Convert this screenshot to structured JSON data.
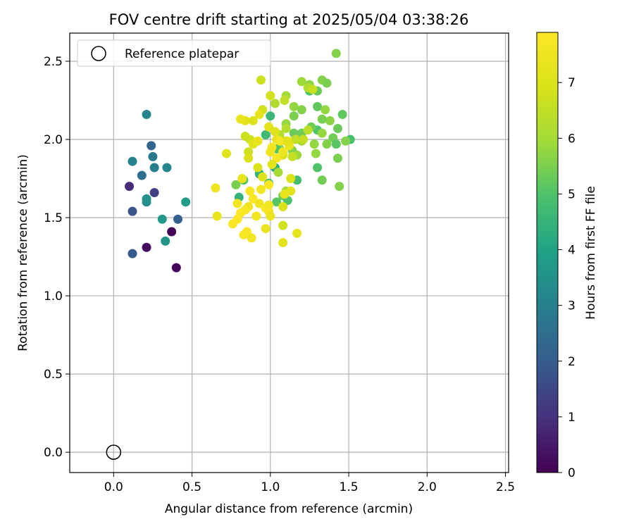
{
  "chart_data": {
    "type": "scatter",
    "title": "FOV centre drift starting at 2025/05/04 03:38:26",
    "xlabel": "Angular distance from reference (arcmin)",
    "ylabel": "Rotation from reference (arcmin)",
    "xlim": [
      -0.28,
      2.52
    ],
    "ylim": [
      -0.13,
      2.68
    ],
    "x_ticks": [
      0.0,
      0.5,
      1.0,
      1.5,
      2.0,
      2.5
    ],
    "x_tick_labels": [
      "0.0",
      "0.5",
      "1.0",
      "1.5",
      "2.0",
      "2.5"
    ],
    "y_ticks": [
      0.0,
      0.5,
      1.0,
      1.5,
      2.0,
      2.5
    ],
    "y_tick_labels": [
      "0.0",
      "0.5",
      "1.0",
      "1.5",
      "2.0",
      "2.5"
    ],
    "grid": true,
    "legend": {
      "placement": "top-left",
      "entries": [
        {
          "label": "Reference platepar",
          "marker": "hollow-circle"
        }
      ]
    },
    "reference_point": {
      "x": 0.0,
      "y": 0.0
    },
    "colorbar": {
      "label": "Hours from first FF file",
      "colormap": "viridis",
      "range": [
        0,
        7.9
      ],
      "ticks": [
        0,
        1,
        2,
        3,
        4,
        5,
        6,
        7
      ],
      "tick_labels": [
        "0",
        "1",
        "2",
        "3",
        "4",
        "5",
        "6",
        "7"
      ]
    },
    "series": [
      {
        "points": [
          [
            0.37,
            1.41,
            0.05
          ],
          [
            0.4,
            1.18,
            0.1
          ],
          [
            0.21,
            1.31,
            0.2
          ],
          [
            0.1,
            1.7,
            0.9
          ],
          [
            0.26,
            1.66,
            1.3
          ],
          [
            0.12,
            1.54,
            1.8
          ],
          [
            0.12,
            1.27,
            1.9
          ],
          [
            0.41,
            1.49,
            2.1
          ],
          [
            0.24,
            1.96,
            2.2
          ],
          [
            0.18,
            1.77,
            2.5
          ],
          [
            0.25,
            1.89,
            2.8
          ],
          [
            0.26,
            1.82,
            2.9
          ],
          [
            0.12,
            1.86,
            3.0
          ],
          [
            0.21,
            2.16,
            3.1
          ],
          [
            0.34,
            1.82,
            3.2
          ],
          [
            0.21,
            1.6,
            3.4
          ],
          [
            0.21,
            1.62,
            3.5
          ],
          [
            0.33,
            1.35,
            3.6
          ],
          [
            0.31,
            1.49,
            3.7
          ],
          [
            0.46,
            1.6,
            3.8
          ],
          [
            1.42,
            2.55,
            5.6
          ],
          [
            1.46,
            2.16,
            5.2
          ],
          [
            1.33,
            2.38,
            5.6
          ],
          [
            1.36,
            2.36,
            5.5
          ],
          [
            1.2,
            2.37,
            5.9
          ],
          [
            1.25,
            2.31,
            5.0
          ],
          [
            1.3,
            2.31,
            5.3
          ],
          [
            1.3,
            2.21,
            5.2
          ],
          [
            1.25,
            2.35,
            5.7
          ],
          [
            1.15,
            2.21,
            5.8
          ],
          [
            1.2,
            2.19,
            5.6
          ],
          [
            1.35,
            2.19,
            5.8
          ],
          [
            1.38,
            2.12,
            5.7
          ],
          [
            1.43,
            2.07,
            5.3
          ],
          [
            1.33,
            2.13,
            5.5
          ],
          [
            1.3,
            2.06,
            5.0
          ],
          [
            1.26,
            2.08,
            5.4
          ],
          [
            1.4,
            2.01,
            5.4
          ],
          [
            1.51,
            2.0,
            4.9
          ],
          [
            1.48,
            1.99,
            5.6
          ],
          [
            1.42,
            1.97,
            5.1
          ],
          [
            1.36,
            1.97,
            5.6
          ],
          [
            1.33,
            2.04,
            5.8
          ],
          [
            1.28,
            1.97,
            5.8
          ],
          [
            1.2,
            2.04,
            5.4
          ],
          [
            1.15,
            2.04,
            5.3
          ],
          [
            1.2,
            1.99,
            5.9
          ],
          [
            1.29,
            1.91,
            5.8
          ],
          [
            1.14,
            1.93,
            5.6
          ],
          [
            1.06,
            1.94,
            5.7
          ],
          [
            1.04,
            1.94,
            5.0
          ],
          [
            1.0,
            2.15,
            4.6
          ],
          [
            0.97,
            2.03,
            4.7
          ],
          [
            1.1,
            2.1,
            5.8
          ],
          [
            1.15,
            2.15,
            5.5
          ],
          [
            1.17,
            1.9,
            5.9
          ],
          [
            1.43,
            1.88,
            5.5
          ],
          [
            1.3,
            1.82,
            5.0
          ],
          [
            1.33,
            1.74,
            5.4
          ],
          [
            1.44,
            1.7,
            5.6
          ],
          [
            1.03,
            1.82,
            4.2
          ],
          [
            0.93,
            1.78,
            4.4
          ],
          [
            0.99,
            1.72,
            4.9
          ],
          [
            1.08,
            1.64,
            5.3
          ],
          [
            1.11,
            1.61,
            5.0
          ],
          [
            0.83,
            1.74,
            5.1
          ],
          [
            0.8,
            1.63,
            4.5
          ],
          [
            0.78,
            1.71,
            5.5
          ],
          [
            1.17,
            1.74,
            4.8
          ],
          [
            1.04,
            1.6,
            5.1
          ],
          [
            1.1,
            1.67,
            6.0
          ],
          [
            1.05,
            1.79,
            6.0
          ],
          [
            1.24,
            2.33,
            6.2
          ],
          [
            1.1,
            2.28,
            6.0
          ],
          [
            1.03,
            2.23,
            6.2
          ],
          [
            1.09,
            2.25,
            6.5
          ],
          [
            1.0,
            2.28,
            6.8
          ],
          [
            0.94,
            2.38,
            6.7
          ],
          [
            1.27,
            2.32,
            6.6
          ],
          [
            1.24,
            2.06,
            6.4
          ],
          [
            1.21,
            2.0,
            6.6
          ],
          [
            1.16,
            2.0,
            6.5
          ],
          [
            1.1,
            2.07,
            6.3
          ],
          [
            1.06,
            2.03,
            6.3
          ],
          [
            1.1,
            1.99,
            6.7
          ],
          [
            1.08,
            1.9,
            6.9
          ],
          [
            1.14,
            1.89,
            6.6
          ],
          [
            0.95,
            2.19,
            6.8
          ],
          [
            0.93,
            2.16,
            7.3
          ],
          [
            0.89,
            2.12,
            7.0
          ],
          [
            0.84,
            2.12,
            7.2
          ],
          [
            0.81,
            2.13,
            7.4
          ],
          [
            0.87,
            2.0,
            6.8
          ],
          [
            0.84,
            2.02,
            6.7
          ],
          [
            0.86,
            1.92,
            6.7
          ],
          [
            0.86,
            1.88,
            7.0
          ],
          [
            0.89,
            1.97,
            7.2
          ],
          [
            0.92,
            1.99,
            7.4
          ],
          [
            0.99,
            2.08,
            7.2
          ],
          [
            1.03,
            2.05,
            7.1
          ],
          [
            1.04,
            2.0,
            7.3
          ],
          [
            1.06,
            1.99,
            7.6
          ],
          [
            1.01,
            1.95,
            7.6
          ],
          [
            1.0,
            1.92,
            7.5
          ],
          [
            1.04,
            1.88,
            7.7
          ],
          [
            1.08,
            1.92,
            7.5
          ],
          [
            1.12,
            1.96,
            7.4
          ],
          [
            1.11,
            1.99,
            7.2
          ],
          [
            0.72,
            1.91,
            7.1
          ],
          [
            0.92,
            1.82,
            7.0
          ],
          [
            1.01,
            1.84,
            7.2
          ],
          [
            0.95,
            1.76,
            7.1
          ],
          [
            1.13,
            1.75,
            7.0
          ],
          [
            0.82,
            1.75,
            7.4
          ],
          [
            0.65,
            1.69,
            7.5
          ],
          [
            0.94,
            1.68,
            7.6
          ],
          [
            0.99,
            1.71,
            7.8
          ],
          [
            1.13,
            1.67,
            7.2
          ],
          [
            1.09,
            1.65,
            7.3
          ],
          [
            0.87,
            1.67,
            7.7
          ],
          [
            0.89,
            1.62,
            7.8
          ],
          [
            0.93,
            1.59,
            7.5
          ],
          [
            0.97,
            1.56,
            7.8
          ],
          [
            0.99,
            1.58,
            7.6
          ],
          [
            0.99,
            1.54,
            7.7
          ],
          [
            0.86,
            1.57,
            7.5
          ],
          [
            0.84,
            1.55,
            7.7
          ],
          [
            0.79,
            1.59,
            7.6
          ],
          [
            0.81,
            1.53,
            7.8
          ],
          [
            0.91,
            1.51,
            7.6
          ],
          [
            1.0,
            1.51,
            7.4
          ],
          [
            0.66,
            1.51,
            7.3
          ],
          [
            0.79,
            1.49,
            7.9
          ],
          [
            0.76,
            1.46,
            7.8
          ],
          [
            0.85,
            1.41,
            7.8
          ],
          [
            0.83,
            1.39,
            7.7
          ],
          [
            0.88,
            1.37,
            7.6
          ],
          [
            0.97,
            1.43,
            7.4
          ],
          [
            1.08,
            1.45,
            6.8
          ],
          [
            1.08,
            1.34,
            7.2
          ],
          [
            1.17,
            1.4,
            7.3
          ],
          [
            1.08,
            1.57,
            7.0
          ]
        ]
      }
    ]
  }
}
